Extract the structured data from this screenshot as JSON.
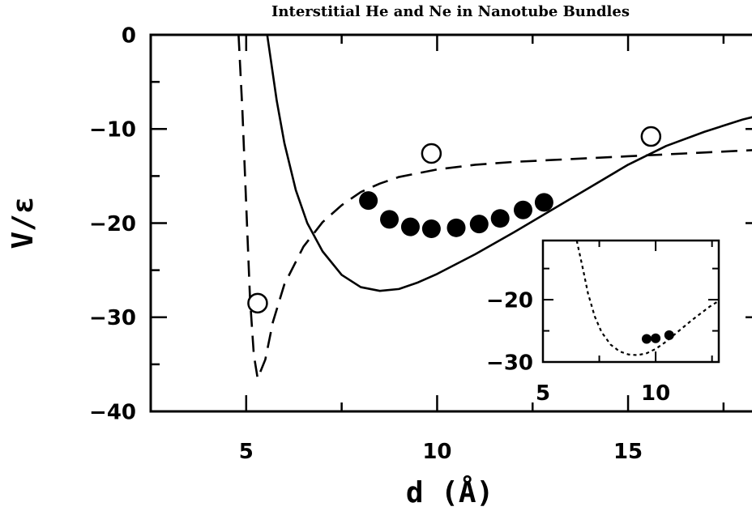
{
  "chart_data": [
    {
      "type": "line",
      "title": "Interstitial He and Ne in Nanotube Bundles",
      "xlabel": "d (Å)",
      "ylabel": "V/ε",
      "xlim": [
        2.5,
        18.5
      ],
      "ylim": [
        -40,
        0
      ],
      "x_ticks": [
        "5",
        "10",
        "15"
      ],
      "y_ticks": [
        "0",
        "−10",
        "−20",
        "−30",
        "−40"
      ],
      "grid": false,
      "series": [
        {
          "style": "solid",
          "x": [
            5.55,
            5.8,
            6.0,
            6.3,
            6.6,
            7.0,
            7.5,
            8.0,
            8.5,
            9.0,
            9.5,
            10.0,
            11.0,
            12.0,
            13.0,
            14.0,
            15.0,
            16.0,
            17.0,
            18.0,
            18.5
          ],
          "y": [
            0,
            -7,
            -11.5,
            -16.5,
            -20.0,
            -23.0,
            -25.5,
            -26.8,
            -27.2,
            -27.0,
            -26.3,
            -25.4,
            -23.3,
            -21.0,
            -18.6,
            -16.2,
            -13.8,
            -11.8,
            -10.3,
            -9.0,
            -8.5
          ]
        },
        {
          "style": "dashed",
          "x": [
            4.8,
            4.9,
            5.0,
            5.1,
            5.2,
            5.3,
            5.5,
            5.7,
            6.0,
            6.5,
            7.0,
            7.5,
            8.0,
            8.5,
            9.0,
            10.0,
            11.0,
            12.0,
            13.0,
            14.0,
            15.0,
            16.0,
            17.0,
            18.0,
            18.5
          ],
          "y": [
            0,
            -8,
            -18,
            -28,
            -34,
            -36.5,
            -34.5,
            -30.5,
            -26.5,
            -22.5,
            -19.9,
            -18.1,
            -16.7,
            -15.8,
            -15.1,
            -14.3,
            -13.8,
            -13.5,
            -13.3,
            -13.1,
            -12.9,
            -12.7,
            -12.5,
            -12.3,
            -12.2
          ]
        },
        {
          "style": "filled-markers",
          "x": [
            8.2,
            8.75,
            9.3,
            9.85,
            10.5,
            11.1,
            11.65,
            12.25,
            12.8
          ],
          "y": [
            -17.6,
            -19.6,
            -20.4,
            -20.6,
            -20.5,
            -20.1,
            -19.5,
            -18.6,
            -17.8
          ]
        },
        {
          "style": "open-markers",
          "x": [
            5.3,
            9.85,
            15.6
          ],
          "y": [
            -28.5,
            -12.6,
            -10.8
          ]
        }
      ]
    },
    {
      "type": "line",
      "xlim": [
        5,
        12.8
      ],
      "ylim": [
        -30,
        -10.5
      ],
      "x_ticks": [
        "5",
        "10"
      ],
      "y_ticks": [
        "−20",
        "−30"
      ],
      "series": [
        {
          "style": "dotted",
          "x": [
            6.5,
            6.8,
            7.0,
            7.3,
            7.6,
            8.0,
            8.4,
            8.8,
            9.2,
            9.6,
            10.0,
            10.4,
            10.8,
            11.2,
            11.6,
            12.0,
            12.4,
            12.8
          ],
          "y": [
            -10.5,
            -15.5,
            -19.0,
            -22.7,
            -25.2,
            -27.2,
            -28.3,
            -28.8,
            -28.9,
            -28.6,
            -27.9,
            -26.9,
            -25.7,
            -24.5,
            -23.3,
            -22.2,
            -21.1,
            -20.2
          ]
        },
        {
          "style": "filled-markers",
          "x": [
            9.6,
            10.0,
            10.6
          ],
          "y": [
            -26.3,
            -26.2,
            -25.7
          ]
        }
      ]
    }
  ]
}
